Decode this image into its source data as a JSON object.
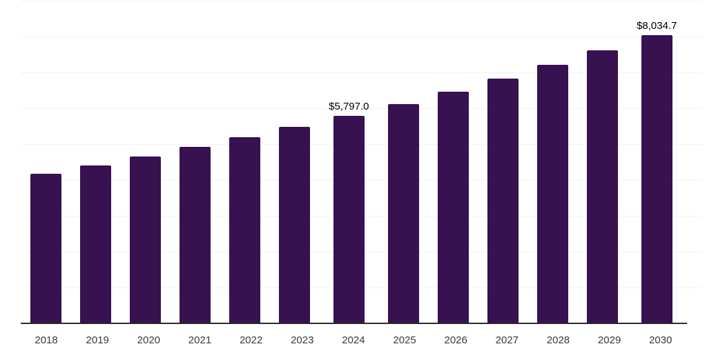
{
  "chart_data": {
    "type": "bar",
    "title": "",
    "xlabel": "",
    "ylabel": "",
    "categories": [
      "2018",
      "2019",
      "2020",
      "2021",
      "2022",
      "2023",
      "2024",
      "2025",
      "2026",
      "2027",
      "2028",
      "2029",
      "2030"
    ],
    "values": [
      4180,
      4410,
      4660,
      4920,
      5200,
      5490,
      5797.0,
      6120,
      6465,
      6825,
      7210,
      7615,
      8034.7
    ],
    "point_labels": [
      "",
      "",
      "",
      "",
      "",
      "",
      "$5,797.0",
      "",
      "",
      "",
      "",
      "",
      "$8,034.7"
    ],
    "ylim": [
      0,
      9000
    ],
    "gridline_step": 1000,
    "grid": true,
    "legend": false,
    "bar_color": "#371150",
    "gridline_color": "#f2f2f2",
    "axis_line_color": "#2b2b2b",
    "tick_label_color": "#3a3a3a",
    "data_label_color": "#000000",
    "background_color": "#ffffff"
  }
}
